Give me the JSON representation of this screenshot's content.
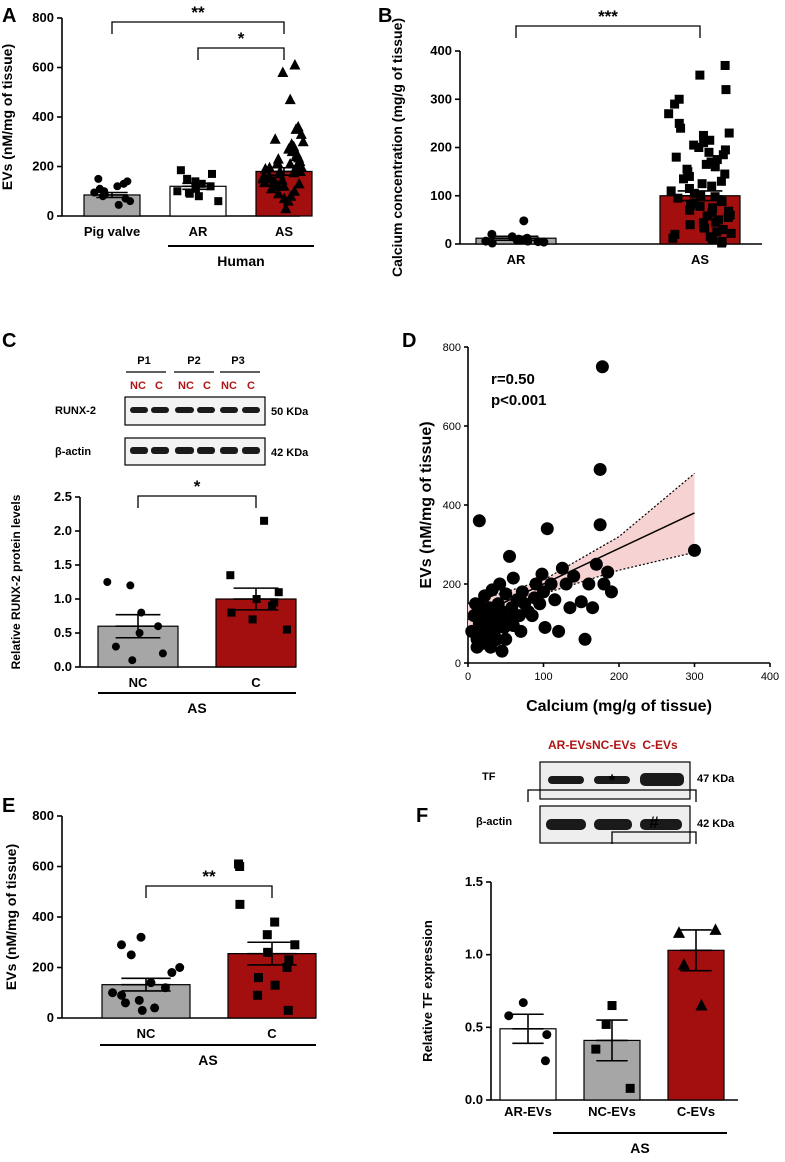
{
  "chart_data": [
    {
      "panel": "A",
      "type": "bar",
      "ylabel": "EVs (nM/mg of tissue)",
      "ylim": [
        0,
        800
      ],
      "yticks": [
        0,
        200,
        400,
        600,
        800
      ],
      "categories": [
        "Pig valve",
        "AR",
        "AS"
      ],
      "values": [
        85,
        120,
        180
      ],
      "sem": [
        10,
        12,
        15
      ],
      "bar_colors": [
        "#a6a6a6",
        "#ffffff",
        "#a30e0e"
      ],
      "group_label": "Human",
      "significance": [
        {
          "from": 0,
          "to": 2,
          "label": "**"
        },
        {
          "from": 1,
          "to": 2,
          "label": "*"
        }
      ],
      "points": [
        [
          45,
          60,
          80,
          95,
          110,
          130,
          150,
          100,
          70,
          88,
          120,
          140
        ],
        [
          60,
          80,
          95,
          110,
          120,
          130,
          150,
          170,
          185,
          120,
          100,
          90,
          140
        ],
        [
          30,
          60,
          80,
          100,
          120,
          130,
          150,
          160,
          170,
          180,
          190,
          200,
          210,
          220,
          230,
          240,
          250,
          270,
          290,
          310,
          330,
          350,
          360,
          470,
          580,
          610,
          140,
          150,
          120,
          110,
          90,
          70,
          200,
          180,
          160,
          260,
          280,
          300,
          155,
          175,
          195,
          215,
          235,
          125,
          135,
          145
        ]
      ]
    },
    {
      "panel": "B",
      "type": "bar",
      "ylabel": "Calcium concentration (mg/g of tissue)",
      "ylim": [
        0,
        400
      ],
      "yticks": [
        0,
        100,
        200,
        300,
        400
      ],
      "categories": [
        "AR",
        "AS"
      ],
      "values": [
        12,
        100
      ],
      "sem": [
        4,
        10
      ],
      "bar_colors": [
        "#a6a6a6",
        "#a30e0e"
      ],
      "significance": [
        {
          "from": 0,
          "to": 1,
          "label": "***"
        }
      ],
      "points": [
        [
          2,
          4,
          5,
          6,
          8,
          8,
          10,
          12,
          15,
          20,
          48,
          6
        ],
        [
          2,
          5,
          10,
          20,
          25,
          30,
          40,
          50,
          55,
          60,
          70,
          80,
          85,
          90,
          100,
          110,
          120,
          130,
          140,
          150,
          160,
          170,
          180,
          190,
          200,
          210,
          230,
          250,
          270,
          290,
          300,
          320,
          350,
          370,
          15,
          35,
          45,
          65,
          75,
          95,
          105,
          115,
          125,
          135,
          145,
          155,
          165,
          175,
          185,
          195,
          205,
          215,
          225,
          240,
          12,
          22,
          33,
          44,
          58,
          68,
          78,
          88,
          98
        ]
      ]
    },
    {
      "panel": "C",
      "type": "bar",
      "ylabel": "Relative RUNX-2 protein levels",
      "ylim": [
        0,
        2.5
      ],
      "yticks": [
        "0.0",
        "0.5",
        "1.0",
        "1.5",
        "2.0",
        "2.5"
      ],
      "categories": [
        "NC",
        "C"
      ],
      "values": [
        0.6,
        1.0
      ],
      "sem": [
        0.17,
        0.16
      ],
      "bar_colors": [
        "#a6a6a6",
        "#a30e0e"
      ],
      "group_label": "AS",
      "significance": [
        {
          "from": 0,
          "to": 1,
          "label": "*"
        }
      ],
      "points": [
        [
          0.1,
          0.2,
          0.5,
          0.6,
          0.8,
          1.2,
          1.25,
          0.3
        ],
        [
          0.55,
          0.7,
          0.8,
          0.9,
          1.0,
          1.1,
          1.35,
          2.15,
          0.95
        ]
      ]
    },
    {
      "panel": "D",
      "type": "scatter",
      "xlabel": "Calcium (mg/g of tissue)",
      "ylabel": "EVs (nM/mg of tissue)",
      "xlim": [
        0,
        400
      ],
      "ylim": [
        0,
        800
      ],
      "xticks": [
        0,
        100,
        200,
        300,
        400
      ],
      "yticks": [
        0,
        200,
        400,
        600,
        800
      ],
      "annotation": [
        "r=0.50",
        "p<0.001"
      ],
      "fit": {
        "x": [
          0,
          300
        ],
        "y": [
          110,
          380
        ]
      },
      "band_upper": [
        [
          0,
          150
        ],
        [
          100,
          210
        ],
        [
          200,
          320
        ],
        [
          300,
          480
        ]
      ],
      "band_lower": [
        [
          0,
          80
        ],
        [
          100,
          175
        ],
        [
          200,
          235
        ],
        [
          300,
          280
        ]
      ],
      "points": [
        [
          5,
          80
        ],
        [
          8,
          120
        ],
        [
          10,
          150
        ],
        [
          12,
          60
        ],
        [
          15,
          100
        ],
        [
          15,
          360
        ],
        [
          18,
          90
        ],
        [
          20,
          130
        ],
        [
          20,
          50
        ],
        [
          22,
          170
        ],
        [
          25,
          110
        ],
        [
          25,
          70
        ],
        [
          28,
          140
        ],
        [
          30,
          95
        ],
        [
          30,
          40
        ],
        [
          32,
          185
        ],
        [
          35,
          120
        ],
        [
          35,
          80
        ],
        [
          38,
          60
        ],
        [
          40,
          150
        ],
        [
          40,
          100
        ],
        [
          42,
          200
        ],
        [
          45,
          130
        ],
        [
          45,
          30
        ],
        [
          48,
          90
        ],
        [
          50,
          175
        ],
        [
          50,
          60
        ],
        [
          55,
          110
        ],
        [
          55,
          270
        ],
        [
          58,
          140
        ],
        [
          60,
          95
        ],
        [
          60,
          215
        ],
        [
          65,
          160
        ],
        [
          68,
          120
        ],
        [
          70,
          80
        ],
        [
          72,
          180
        ],
        [
          75,
          150
        ],
        [
          80,
          130
        ],
        [
          85,
          120
        ],
        [
          88,
          165
        ],
        [
          90,
          200
        ],
        [
          95,
          150
        ],
        [
          98,
          225
        ],
        [
          100,
          180
        ],
        [
          102,
          90
        ],
        [
          105,
          340
        ],
        [
          110,
          200
        ],
        [
          115,
          160
        ],
        [
          120,
          80
        ],
        [
          125,
          240
        ],
        [
          130,
          200
        ],
        [
          135,
          140
        ],
        [
          140,
          220
        ],
        [
          150,
          155
        ],
        [
          155,
          60
        ],
        [
          160,
          200
        ],
        [
          165,
          140
        ],
        [
          170,
          250
        ],
        [
          175,
          350
        ],
        [
          175,
          490
        ],
        [
          178,
          750
        ],
        [
          180,
          200
        ],
        [
          185,
          230
        ],
        [
          190,
          180
        ],
        [
          300,
          285
        ],
        [
          12,
          40
        ],
        [
          18,
          140
        ],
        [
          28,
          75
        ],
        [
          33,
          55
        ],
        [
          45,
          115
        ]
      ]
    },
    {
      "panel": "E",
      "type": "bar",
      "ylabel": "EVs (nM/mg of tissue)",
      "ylim": [
        0,
        800
      ],
      "yticks": [
        0,
        200,
        400,
        600,
        800
      ],
      "categories": [
        "NC",
        "C"
      ],
      "values": [
        132,
        255
      ],
      "sem": [
        25,
        45
      ],
      "bar_colors": [
        "#a6a6a6",
        "#a30e0e"
      ],
      "group_label": "AS",
      "significance": [
        {
          "from": 0,
          "to": 1,
          "label": "**"
        }
      ],
      "points": [
        [
          30,
          40,
          60,
          70,
          90,
          100,
          120,
          140,
          180,
          200,
          250,
          290,
          320
        ],
        [
          30,
          90,
          130,
          160,
          200,
          230,
          260,
          290,
          330,
          380,
          450,
          600,
          610
        ]
      ]
    },
    {
      "panel": "F",
      "type": "bar",
      "ylabel": "Relative TF expression",
      "ylim": [
        0,
        1.5
      ],
      "yticks": [
        "0.0",
        "0.5",
        "1.0",
        "1.5"
      ],
      "categories": [
        "AR-EVs",
        "NC-EVs",
        "C-EVs"
      ],
      "values": [
        0.49,
        0.41,
        1.03
      ],
      "sem": [
        0.1,
        0.14,
        0.14
      ],
      "bar_colors": [
        "#ffffff",
        "#a6a6a6",
        "#a30e0e"
      ],
      "group_label": "AS",
      "significance": [
        {
          "from": 0,
          "to": 2,
          "label": "*"
        },
        {
          "from": 1,
          "to": 2,
          "label": "#"
        }
      ],
      "points": [
        [
          0.27,
          0.45,
          0.58,
          0.67
        ],
        [
          0.08,
          0.35,
          0.52,
          0.65
        ],
        [
          0.65,
          0.93,
          1.15,
          1.17
        ]
      ]
    }
  ],
  "panel_labels": [
    "A",
    "B",
    "C",
    "D",
    "E",
    "F"
  ],
  "blot_c": {
    "groups": [
      "P1",
      "P2",
      "P3"
    ],
    "lanes": [
      "NC",
      "C",
      "NC",
      "C",
      "NC",
      "C"
    ],
    "rows": [
      {
        "label": "RUNX-2",
        "size": "50 KDa"
      },
      {
        "label": "β-actin",
        "size": "42 KDa"
      }
    ]
  },
  "blot_f": {
    "lanes": [
      "AR-EVs",
      "NC-EVs",
      "C-EVs"
    ],
    "rows": [
      {
        "label": "TF",
        "size": "47 KDa"
      },
      {
        "label": "β-actin",
        "size": "42 KDa"
      }
    ]
  }
}
